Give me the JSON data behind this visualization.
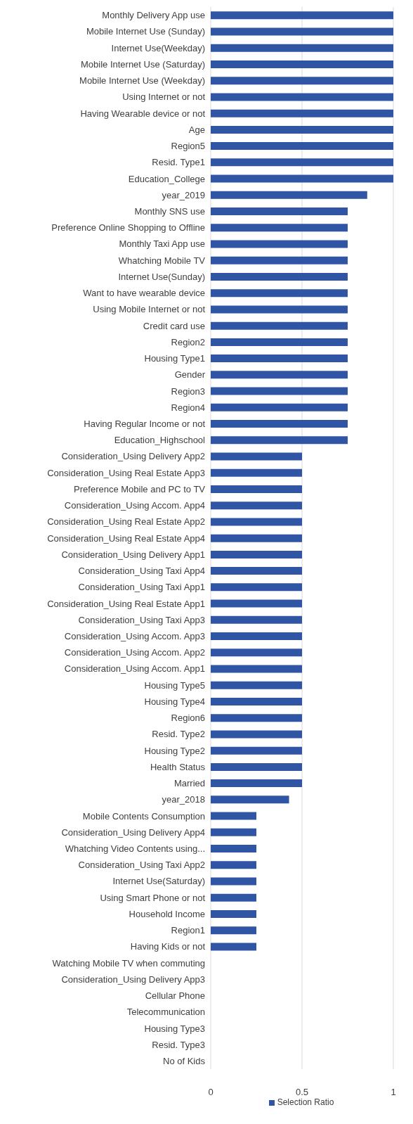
{
  "chart_data": {
    "type": "bar",
    "orientation": "horizontal",
    "categories": [
      "Monthly Delivery App use",
      "Mobile Internet Use (Sunday)",
      "Internet Use(Weekday)",
      "Mobile Internet Use (Saturday)",
      "Mobile Internet Use (Weekday)",
      "Using Internet or not",
      "Having Wearable device or not",
      "Age",
      "Region5",
      "Resid. Type1",
      "Education_College",
      "year_2019",
      "Monthly SNS use",
      "Preference Online Shopping to Offline",
      "Monthly Taxi App use",
      "Whatching Mobile TV",
      "Internet Use(Sunday)",
      "Want to have wearable device",
      "Using Mobile Internet or not",
      "Credit card use",
      "Region2",
      "Housing Type1",
      "Gender",
      "Region3",
      "Region4",
      "Having Regular Income or not",
      "Education_Highschool",
      "Consideration_Using Delivery App2",
      "Consideration_Using Real Estate App3",
      "Preference Mobile and PC to TV",
      "Consideration_Using Accom. App4",
      "Consideration_Using Real Estate App2",
      "Consideration_Using Real Estate App4",
      "Consideration_Using Delivery App1",
      "Consideration_Using Taxi App4",
      "Consideration_Using Taxi App1",
      "Consideration_Using Real Estate App1",
      "Consideration_Using Taxi App3",
      "Consideration_Using Accom. App3",
      "Consideration_Using Accom. App2",
      "Consideration_Using Accom. App1",
      "Housing Type5",
      "Housing Type4",
      "Region6",
      "Resid. Type2",
      "Housing Type2",
      "Health Status",
      "Married",
      "year_2018",
      "Mobile Contents Consumption",
      "Consideration_Using Delivery App4",
      "Whatching Video Contents using...",
      "Consideration_Using Taxi App2",
      "Internet Use(Saturday)",
      "Using Smart Phone or not",
      "Household Income",
      "Region1",
      "Having Kids or not",
      "Watching Mobile TV when commuting",
      "Consideration_Using Delivery App3",
      "Cellular Phone",
      "Telecommunication",
      "Housing Type3",
      "Resid. Type3",
      "No of Kids"
    ],
    "series": [
      {
        "name": "Selection Ratio",
        "color": "#2f55a4",
        "values": [
          1,
          1,
          1,
          1,
          1,
          1,
          1,
          1,
          1,
          1,
          1,
          0.857,
          0.75,
          0.75,
          0.75,
          0.75,
          0.75,
          0.75,
          0.75,
          0.75,
          0.75,
          0.75,
          0.75,
          0.75,
          0.75,
          0.75,
          0.75,
          0.5,
          0.5,
          0.5,
          0.5,
          0.5,
          0.5,
          0.5,
          0.5,
          0.5,
          0.5,
          0.5,
          0.5,
          0.5,
          0.5,
          0.5,
          0.5,
          0.5,
          0.5,
          0.5,
          0.5,
          0.5,
          0.429,
          0.25,
          0.25,
          0.25,
          0.25,
          0.25,
          0.25,
          0.25,
          0.25,
          0.25,
          0,
          0,
          0,
          0,
          0,
          0,
          0
        ]
      }
    ],
    "xlim": [
      0,
      1
    ],
    "xticks": [
      0,
      0.5,
      1
    ],
    "grid": "x",
    "legend": "bottom"
  }
}
